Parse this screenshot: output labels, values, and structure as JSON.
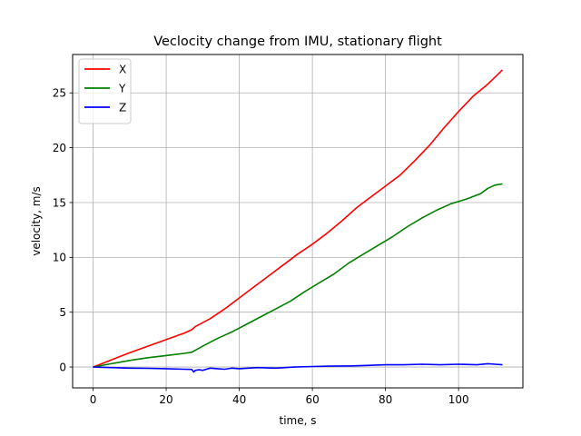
{
  "chart_data": {
    "type": "line",
    "title": "Veclocity change from IMU, stationary flight",
    "xlabel": "time, s",
    "ylabel": "velocity, m/s",
    "xlim": [
      -5.6,
      117.6
    ],
    "ylim": [
      -1.9,
      28.5
    ],
    "xticks": [
      0,
      20,
      40,
      60,
      80,
      100
    ],
    "yticks": [
      0,
      5,
      10,
      15,
      20,
      25
    ],
    "grid": true,
    "legend_position": "top-left",
    "series": [
      {
        "name": "X",
        "color": "#ff0000",
        "x": [
          0,
          5,
          10,
          15,
          20,
          25,
          27,
          28,
          32,
          36,
          40,
          44,
          48,
          52,
          56,
          60,
          64,
          68,
          72,
          76,
          80,
          84,
          88,
          92,
          96,
          100,
          104,
          108,
          112
        ],
        "y": [
          0,
          0.65,
          1.3,
          1.9,
          2.5,
          3.1,
          3.4,
          3.7,
          4.4,
          5.3,
          6.3,
          7.3,
          8.3,
          9.3,
          10.3,
          11.2,
          12.2,
          13.3,
          14.5,
          15.5,
          16.5,
          17.5,
          18.8,
          20.2,
          21.8,
          23.3,
          24.7,
          25.8,
          27.1
        ]
      },
      {
        "name": "Y",
        "color": "#008000",
        "x": [
          0,
          5,
          10,
          15,
          20,
          25,
          27,
          30,
          34,
          38,
          42,
          46,
          50,
          54,
          58,
          62,
          66,
          70,
          74,
          78,
          82,
          86,
          90,
          94,
          98,
          102,
          106,
          108,
          110,
          112
        ],
        "y": [
          0,
          0.3,
          0.6,
          0.85,
          1.05,
          1.25,
          1.35,
          1.9,
          2.6,
          3.2,
          3.9,
          4.6,
          5.3,
          6.0,
          6.9,
          7.7,
          8.5,
          9.5,
          10.3,
          11.1,
          11.9,
          12.8,
          13.6,
          14.3,
          14.9,
          15.3,
          15.8,
          16.3,
          16.6,
          16.7
        ]
      },
      {
        "name": "Z",
        "color": "#0000ff",
        "x": [
          0,
          5,
          10,
          15,
          20,
          25,
          27,
          27.5,
          28,
          29,
          30,
          32,
          34,
          36,
          38,
          40,
          45,
          50,
          55,
          60,
          65,
          70,
          75,
          80,
          85,
          90,
          95,
          100,
          105,
          108,
          110,
          112
        ],
        "y": [
          0,
          -0.05,
          -0.1,
          -0.12,
          -0.15,
          -0.2,
          -0.22,
          -0.45,
          -0.3,
          -0.25,
          -0.3,
          -0.1,
          -0.15,
          -0.2,
          -0.1,
          -0.15,
          -0.05,
          -0.1,
          0.0,
          0.05,
          0.08,
          0.1,
          0.15,
          0.2,
          0.2,
          0.25,
          0.2,
          0.25,
          0.2,
          0.3,
          0.25,
          0.2
        ]
      }
    ]
  }
}
